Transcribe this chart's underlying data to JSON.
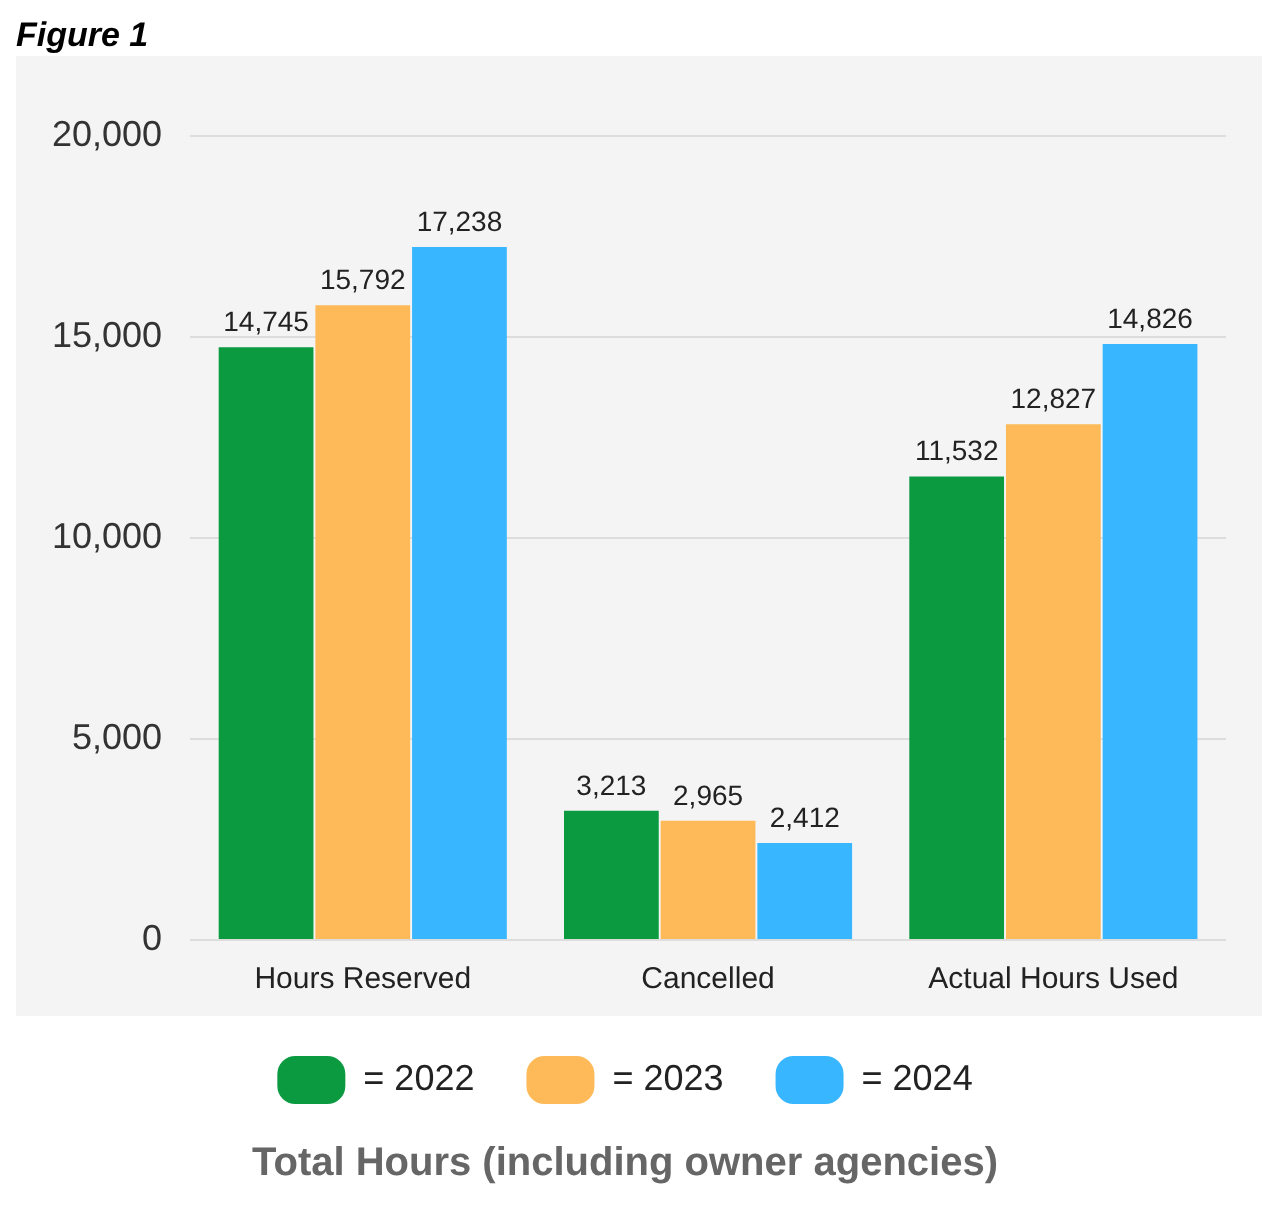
{
  "chart_data": {
    "type": "bar",
    "title": "Total Hours (including owner agencies)",
    "annotations": [
      "Figure 1"
    ],
    "categories": [
      "Hours Reserved",
      "Cancelled",
      "Actual Hours Used"
    ],
    "series": [
      {
        "name": "= 2022",
        "color": "#0b9a40",
        "values": [
          14745,
          3213,
          11532
        ],
        "value_labels": [
          "14,745",
          "3,213",
          "11,532"
        ]
      },
      {
        "name": "= 2023",
        "color": "#feba59",
        "values": [
          15792,
          2965,
          12827
        ],
        "value_labels": [
          "15,792",
          "2,965",
          "12,827"
        ]
      },
      {
        "name": "= 2024",
        "color": "#38b6ff",
        "values": [
          17238,
          2412,
          14826
        ],
        "value_labels": [
          "17,238",
          "2,412",
          "14,826"
        ]
      }
    ],
    "ylim": [
      0,
      20000
    ],
    "yticks": [
      {
        "value": 0,
        "label": "0"
      },
      {
        "value": 5000,
        "label": "5,000"
      },
      {
        "value": 10000,
        "label": "10,000"
      },
      {
        "value": 15000,
        "label": "15,000"
      },
      {
        "value": 20000,
        "label": "20,000"
      }
    ],
    "grid": "y",
    "legend": "bottom"
  }
}
